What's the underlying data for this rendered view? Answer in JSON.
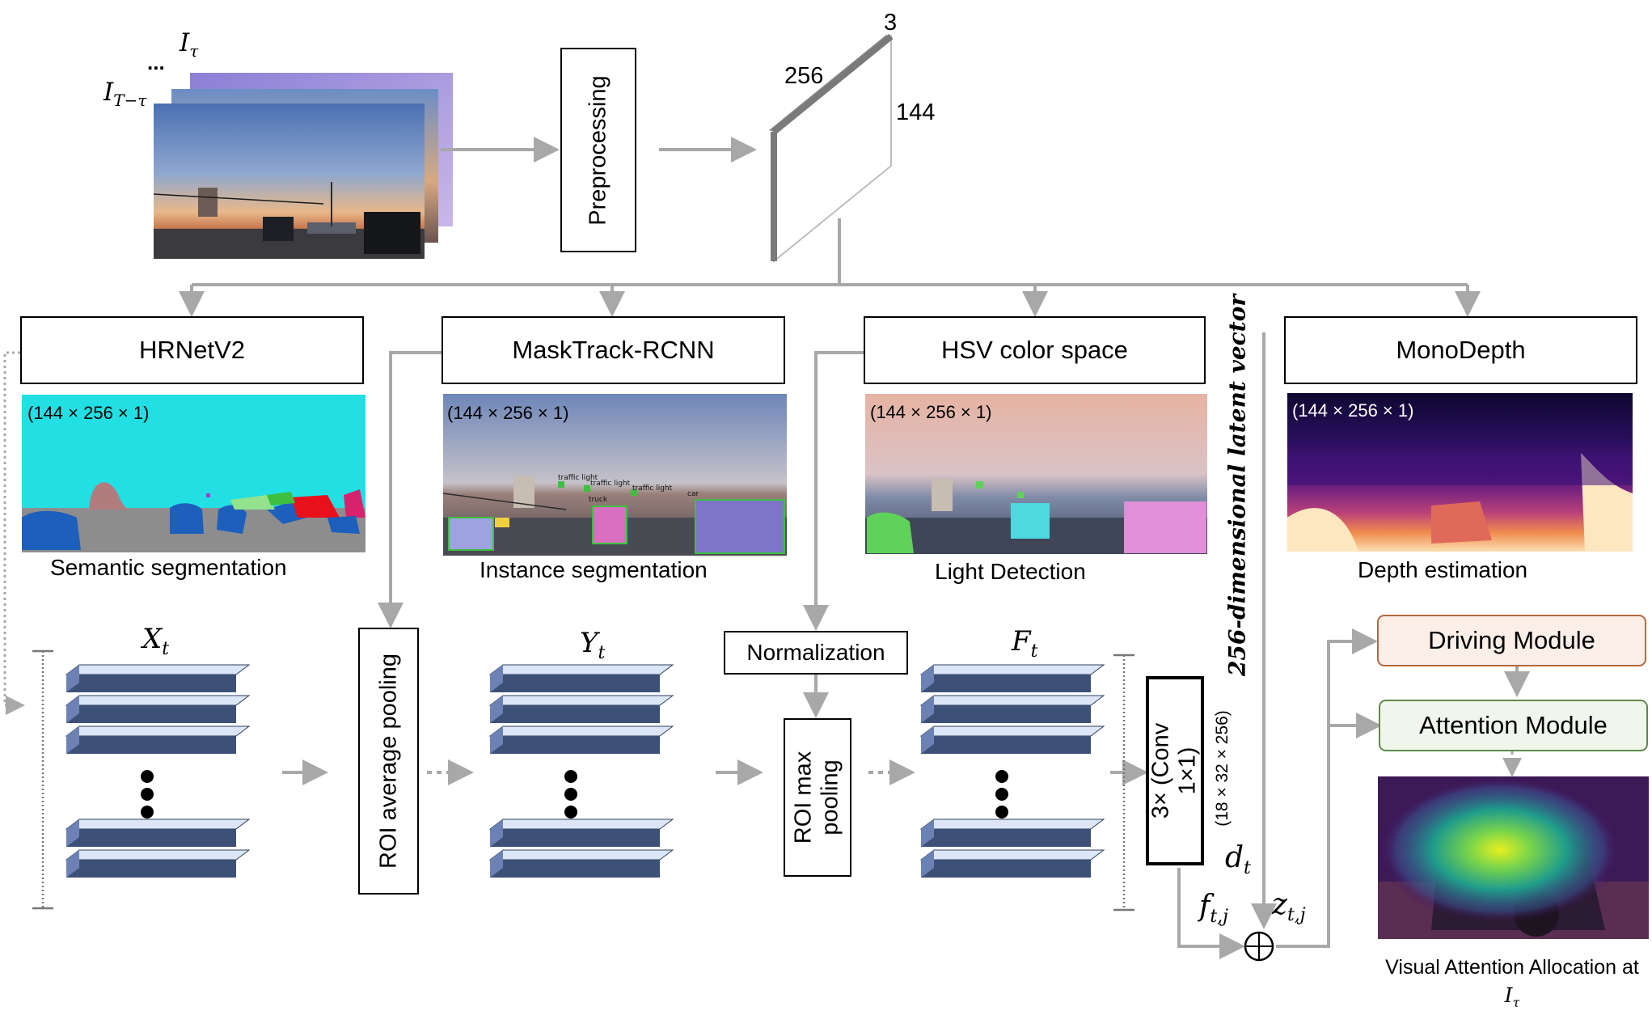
{
  "input": {
    "frame_label_top": "I",
    "frame_label_top_sub": "τ",
    "frame_ellipsis": "...",
    "frame_label_bottom": "I",
    "frame_label_bottom_sub": "T−τ"
  },
  "preprocessing": {
    "label": "Preprocessing"
  },
  "tensor": {
    "dim_depth": "3",
    "dim_width": "256",
    "dim_height": "144"
  },
  "branches": {
    "hrnet": {
      "title": "HRNetV2",
      "dims": "(144 × 256 × 1)",
      "caption": "Semantic segmentation"
    },
    "masktrack": {
      "title": "MaskTrack-RCNN",
      "dims": "(144 × 256 × 1)",
      "caption": "Instance segmentation",
      "detections": [
        "traffic light",
        "traffic light",
        "traffic light",
        "truck",
        "car"
      ]
    },
    "hsv": {
      "title": "HSV color space",
      "dims": "(144 × 256 × 1)",
      "caption": "Light Detection"
    },
    "monodepth": {
      "title": "MonoDepth",
      "dims": "(144 × 256 × 1)",
      "caption": "Depth estimation"
    }
  },
  "features": {
    "x": {
      "symbol": "X",
      "sub": "t"
    },
    "y": {
      "symbol": "Y",
      "sub": "t"
    },
    "f": {
      "symbol": "F",
      "sub": "t"
    }
  },
  "ops": {
    "roi_avg": "ROI average pooling",
    "normalization": "Normalization",
    "roi_max": "ROI max pooling",
    "conv": "3× (Conv 1×1)",
    "conv_dims": "(18 × 32 × 256)"
  },
  "latent": {
    "label": "256-dimensional latent vector",
    "d": "d",
    "d_sub": "t",
    "f": "f",
    "f_sub": "t,j",
    "z": "z",
    "z_sub": "t,j",
    "combine_symbol": "⊕"
  },
  "modules": {
    "driving": {
      "label": "Driving Module",
      "border": "#b5683f",
      "fill": "#fbefe8"
    },
    "attention": {
      "label": "Attention Module",
      "border": "#5f8a4a",
      "fill": "#f1f6ec"
    }
  },
  "output": {
    "caption": "Visual Attention Allocation at",
    "caption_symbol": "I",
    "caption_sub": "τ"
  },
  "colors": {
    "arrow": "#a8a8a8",
    "block_top": "#dce6f6",
    "block_front": "#3d5078",
    "block_side": "#6d82b4"
  }
}
